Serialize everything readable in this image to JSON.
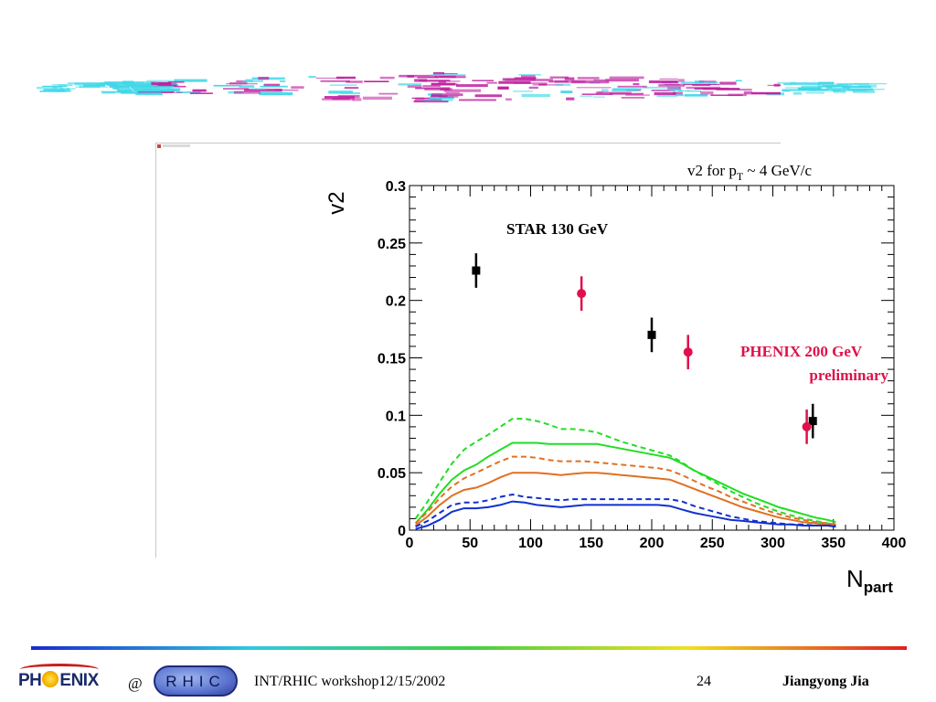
{
  "footer": {
    "logo_left_text": "PHENIX",
    "at_symbol": "@",
    "logo_right_text": "RHIC",
    "event": "INT/RHIC workshop12/15/2002",
    "page_number": "24",
    "author": "Jiangyong Jia"
  },
  "colors": {
    "star_points": "#000000",
    "phenix_points": "#e0104a",
    "green_curve": "#22dd22",
    "orange_curve": "#e07020",
    "blue_curve": "#1030d0",
    "banner_magenta": "#c020a0",
    "banner_cyan": "#40d8e8"
  },
  "chart_data": {
    "type": "scatter",
    "title": "v2  for pT ~ 4 GeV/c",
    "title_parts": {
      "prefix": "v2  for p",
      "subscript": "T",
      "suffix": " ~ 4 GeV/c"
    },
    "xlabel": "N",
    "xlabel_subscript": "part",
    "ylabel": "v2",
    "xlim": [
      0,
      400
    ],
    "ylim": [
      0,
      0.3
    ],
    "xticks": [
      "0",
      "50",
      "100",
      "150",
      "200",
      "250",
      "300",
      "350",
      "400"
    ],
    "yticks": [
      "0",
      "0.05",
      "0.1",
      "0.15",
      "0.2",
      "0.25",
      "0.3"
    ],
    "series": [
      {
        "name": "STAR 130 GeV",
        "kind": "points",
        "marker": "square",
        "color": "#000000",
        "x": [
          55,
          200,
          333
        ],
        "y": [
          0.226,
          0.17,
          0.095
        ],
        "err": [
          0.015,
          0.015,
          0.015
        ]
      },
      {
        "name": "PHENIX 200 GeV preliminary",
        "kind": "points",
        "marker": "circle",
        "color": "#e0104a",
        "x": [
          142,
          230,
          328
        ],
        "y": [
          0.206,
          0.155,
          0.09
        ],
        "err": [
          0.015,
          0.015,
          0.015
        ]
      },
      {
        "kind": "line",
        "style": "dashed",
        "color": "#22dd22",
        "x": [
          5,
          15,
          25,
          35,
          45,
          55,
          65,
          75,
          85,
          95,
          105,
          115,
          125,
          135,
          145,
          155,
          165,
          175,
          185,
          195,
          205,
          215,
          225,
          235,
          245,
          255,
          265,
          275,
          285,
          295,
          305,
          315,
          325,
          335,
          345,
          352
        ],
        "y": [
          0.01,
          0.025,
          0.042,
          0.058,
          0.07,
          0.077,
          0.083,
          0.09,
          0.097,
          0.097,
          0.095,
          0.092,
          0.088,
          0.088,
          0.087,
          0.085,
          0.081,
          0.077,
          0.074,
          0.071,
          0.068,
          0.065,
          0.059,
          0.052,
          0.046,
          0.04,
          0.034,
          0.029,
          0.024,
          0.02,
          0.016,
          0.013,
          0.01,
          0.008,
          0.006,
          0.005
        ]
      },
      {
        "kind": "line",
        "style": "solid",
        "color": "#22dd22",
        "x": [
          5,
          15,
          25,
          35,
          45,
          55,
          65,
          75,
          85,
          95,
          105,
          115,
          125,
          135,
          145,
          155,
          165,
          175,
          185,
          195,
          205,
          215,
          225,
          235,
          245,
          255,
          265,
          275,
          285,
          295,
          305,
          315,
          325,
          335,
          345,
          352
        ],
        "y": [
          0.006,
          0.018,
          0.032,
          0.044,
          0.052,
          0.057,
          0.064,
          0.07,
          0.076,
          0.076,
          0.076,
          0.075,
          0.075,
          0.075,
          0.075,
          0.075,
          0.073,
          0.071,
          0.069,
          0.067,
          0.065,
          0.063,
          0.058,
          0.052,
          0.047,
          0.042,
          0.037,
          0.032,
          0.028,
          0.024,
          0.02,
          0.017,
          0.014,
          0.011,
          0.009,
          0.007
        ]
      },
      {
        "kind": "line",
        "style": "dashed",
        "color": "#e07020",
        "x": [
          5,
          15,
          25,
          35,
          45,
          55,
          65,
          75,
          85,
          95,
          105,
          115,
          125,
          135,
          145,
          155,
          165,
          175,
          185,
          195,
          205,
          215,
          225,
          235,
          245,
          255,
          265,
          275,
          285,
          295,
          305,
          315,
          325,
          335,
          345,
          352
        ],
        "y": [
          0.006,
          0.016,
          0.028,
          0.038,
          0.045,
          0.05,
          0.055,
          0.06,
          0.064,
          0.064,
          0.063,
          0.061,
          0.06,
          0.06,
          0.06,
          0.059,
          0.058,
          0.057,
          0.056,
          0.055,
          0.054,
          0.052,
          0.048,
          0.043,
          0.038,
          0.034,
          0.029,
          0.025,
          0.021,
          0.017,
          0.014,
          0.011,
          0.009,
          0.007,
          0.006,
          0.005
        ]
      },
      {
        "kind": "line",
        "style": "solid",
        "color": "#e07020",
        "x": [
          5,
          15,
          25,
          35,
          45,
          55,
          65,
          75,
          85,
          95,
          105,
          115,
          125,
          135,
          145,
          155,
          165,
          175,
          185,
          195,
          205,
          215,
          225,
          235,
          245,
          255,
          265,
          275,
          285,
          295,
          305,
          315,
          325,
          335,
          345,
          352
        ],
        "y": [
          0.004,
          0.012,
          0.022,
          0.03,
          0.035,
          0.037,
          0.041,
          0.046,
          0.05,
          0.05,
          0.05,
          0.049,
          0.048,
          0.049,
          0.05,
          0.05,
          0.049,
          0.048,
          0.047,
          0.046,
          0.045,
          0.044,
          0.04,
          0.036,
          0.032,
          0.028,
          0.024,
          0.02,
          0.017,
          0.014,
          0.011,
          0.009,
          0.007,
          0.006,
          0.005,
          0.004
        ]
      },
      {
        "kind": "line",
        "style": "dashed",
        "color": "#1030d0",
        "x": [
          5,
          15,
          25,
          35,
          45,
          55,
          65,
          75,
          85,
          95,
          105,
          115,
          125,
          135,
          145,
          155,
          165,
          175,
          185,
          195,
          205,
          215,
          225,
          235,
          245,
          255,
          265,
          275,
          285,
          295,
          305,
          315,
          325,
          335,
          345,
          352
        ],
        "y": [
          0.003,
          0.008,
          0.015,
          0.022,
          0.024,
          0.024,
          0.026,
          0.029,
          0.031,
          0.029,
          0.028,
          0.027,
          0.026,
          0.027,
          0.027,
          0.027,
          0.027,
          0.027,
          0.027,
          0.027,
          0.027,
          0.027,
          0.025,
          0.021,
          0.018,
          0.015,
          0.012,
          0.01,
          0.008,
          0.007,
          0.006,
          0.005,
          0.005,
          0.004,
          0.004,
          0.004
        ]
      },
      {
        "kind": "line",
        "style": "solid",
        "color": "#1030d0",
        "x": [
          5,
          15,
          25,
          35,
          45,
          55,
          65,
          75,
          85,
          95,
          105,
          115,
          125,
          135,
          145,
          155,
          165,
          175,
          185,
          195,
          205,
          215,
          225,
          235,
          245,
          255,
          265,
          275,
          285,
          295,
          305,
          315,
          325,
          335,
          345,
          352
        ],
        "y": [
          0.001,
          0.004,
          0.009,
          0.016,
          0.019,
          0.019,
          0.02,
          0.022,
          0.025,
          0.024,
          0.022,
          0.021,
          0.02,
          0.021,
          0.022,
          0.022,
          0.022,
          0.022,
          0.022,
          0.022,
          0.022,
          0.021,
          0.018,
          0.015,
          0.013,
          0.011,
          0.009,
          0.008,
          0.007,
          0.006,
          0.005,
          0.005,
          0.004,
          0.004,
          0.004,
          0.003
        ]
      }
    ],
    "annotations": [
      {
        "text": "STAR 130 GeV",
        "color": "#000000"
      },
      {
        "text": "PHENIX 200 GeV",
        "color": "#e0104a"
      },
      {
        "text": "preliminary",
        "color": "#e0104a"
      }
    ],
    "grid": false
  }
}
